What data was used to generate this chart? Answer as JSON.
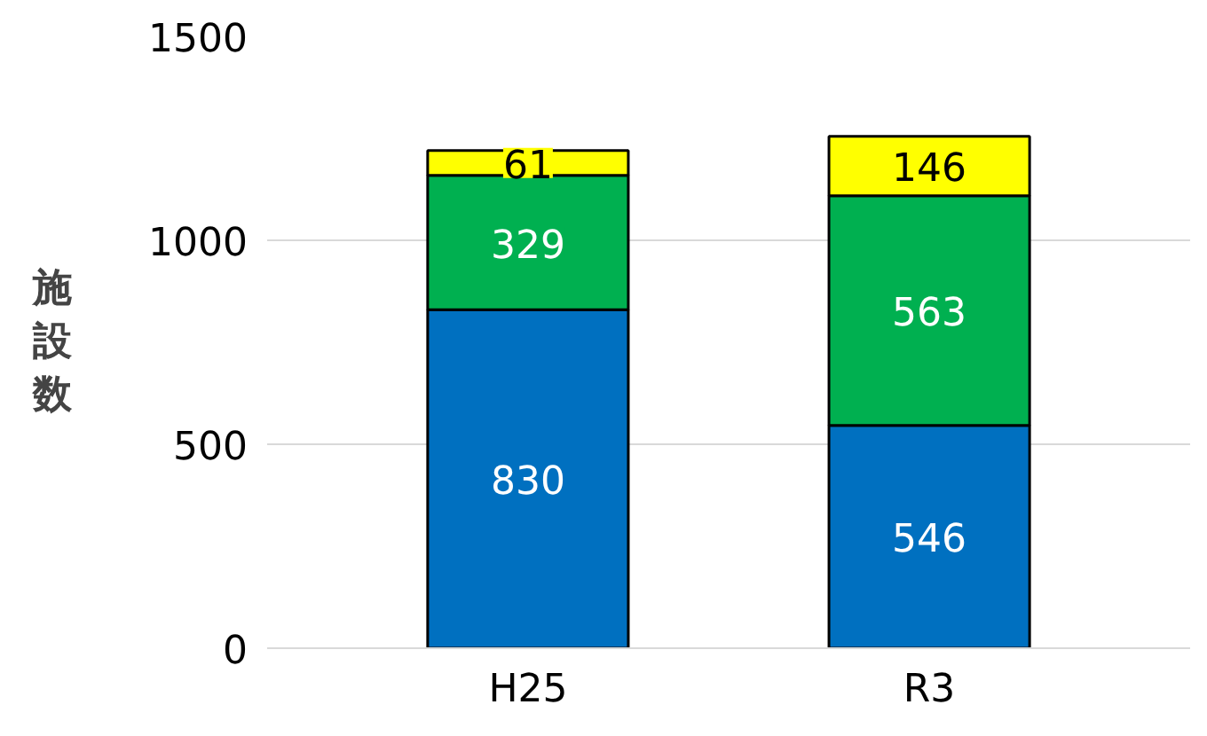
{
  "chart_data": {
    "type": "bar",
    "stacked": true,
    "ylabel": "施設数",
    "categories": [
      "H25",
      "R3"
    ],
    "series": [
      {
        "color": "#0070c0",
        "values": [
          830,
          546
        ]
      },
      {
        "color": "#00b050",
        "values": [
          329,
          563
        ]
      },
      {
        "color": "#ffff00",
        "values": [
          61,
          146
        ]
      }
    ],
    "ylim": [
      0,
      1500
    ],
    "yticks": [
      0,
      500,
      1000,
      1500
    ],
    "grid": "y",
    "data_labels": true
  }
}
